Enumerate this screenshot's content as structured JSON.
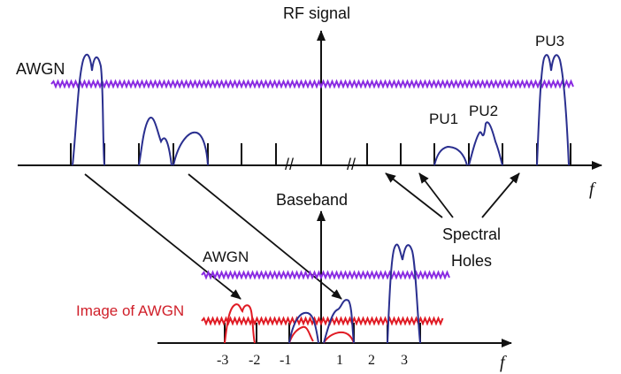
{
  "colors": {
    "axis": "#111111",
    "signal": "#2a2f8f",
    "awgn": "#8a2be2",
    "image_awgn": "#e01b24"
  },
  "labels": {
    "rf_signal": "RF signal",
    "awgn_top": "AWGN",
    "pu1": "PU1",
    "pu2": "PU2",
    "pu3": "PU3",
    "freq_top": "f",
    "baseband": "Baseband",
    "spectral": "Spectral",
    "holes": "Holes",
    "awgn_bottom": "AWGN",
    "image_of_awgn": "Image of AWGN",
    "freq_bottom": "f",
    "break_left": "//",
    "break_right": "//"
  },
  "ticks": [
    "-3",
    "-2",
    "-1",
    "1",
    "2",
    "3"
  ]
}
